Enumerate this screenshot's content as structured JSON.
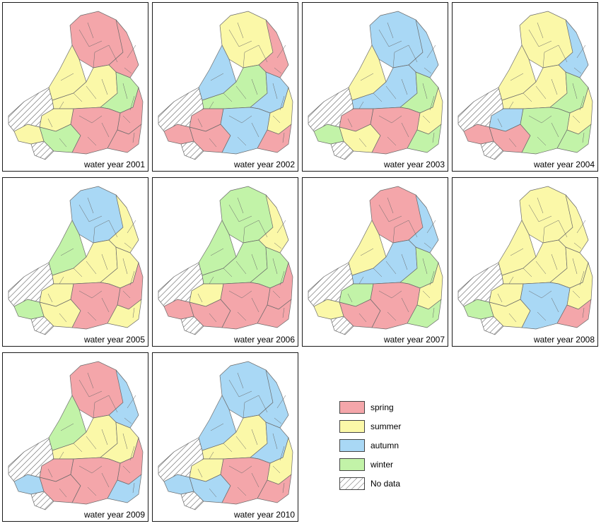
{
  "colors": {
    "spring": "#f4a6aa",
    "summer": "#fbf8a8",
    "autumn": "#a9d8f5",
    "winter": "#c2f3a8",
    "nodata": "#ffffff",
    "outline": "#6a6a6a"
  },
  "legend": [
    {
      "key": "spring",
      "label": "spring"
    },
    {
      "key": "summer",
      "label": "summer"
    },
    {
      "key": "autumn",
      "label": "autumn"
    },
    {
      "key": "winter",
      "label": "winter"
    },
    {
      "key": "nodata",
      "label": "No data"
    }
  ],
  "maps": [
    {
      "caption": "water year 2001",
      "cells": {
        "N": "spring",
        "NW": "summer",
        "NE": "spring",
        "C": "summer",
        "W": "summer",
        "CE": "winter",
        "E": "spring",
        "SW": "winter",
        "S": "spring",
        "SE": "spring",
        "COAST": "summer"
      }
    },
    {
      "caption": "water year 2002",
      "cells": {
        "N": "summer",
        "NW": "autumn",
        "NE": "spring",
        "C": "winter",
        "W": "spring",
        "CE": "autumn",
        "E": "summer",
        "SW": "spring",
        "S": "autumn",
        "SE": "spring",
        "COAST": "spring"
      }
    },
    {
      "caption": "water year 2003",
      "cells": {
        "N": "autumn",
        "NW": "summer",
        "NE": "autumn",
        "C": "autumn",
        "W": "spring",
        "CE": "winter",
        "E": "summer",
        "SW": "summer",
        "S": "spring",
        "SE": "winter",
        "COAST": "winter"
      }
    },
    {
      "caption": "water year 2004",
      "cells": {
        "N": "summer",
        "NW": "summer",
        "NE": "autumn",
        "C": "summer",
        "W": "autumn",
        "CE": "winter",
        "E": "summer",
        "SW": "spring",
        "S": "winter",
        "SE": "winter",
        "COAST": "spring"
      }
    },
    {
      "caption": "water year 2005",
      "cells": {
        "N": "autumn",
        "NW": "winter",
        "NE": "summer",
        "C": "summer",
        "W": "summer",
        "CE": "summer",
        "E": "spring",
        "SW": "summer",
        "S": "spring",
        "SE": "summer",
        "COAST": "winter"
      }
    },
    {
      "caption": "water year 2006",
      "cells": {
        "N": "winter",
        "NW": "winter",
        "NE": "summer",
        "C": "winter",
        "W": "summer",
        "CE": "winter",
        "E": "spring",
        "SW": "spring",
        "S": "spring",
        "SE": "spring",
        "COAST": "spring"
      }
    },
    {
      "caption": "water year 2007",
      "cells": {
        "N": "spring",
        "NW": "summer",
        "NE": "autumn",
        "C": "autumn",
        "W": "winter",
        "CE": "winter",
        "E": "summer",
        "SW": "spring",
        "S": "spring",
        "SE": "winter",
        "COAST": "summer"
      }
    },
    {
      "caption": "water year 2008",
      "cells": {
        "N": "summer",
        "NW": "summer",
        "NE": "summer",
        "C": "summer",
        "W": "summer",
        "CE": "summer",
        "E": "summer",
        "SW": "summer",
        "S": "autumn",
        "SE": "spring",
        "COAST": "winter"
      }
    },
    {
      "caption": "water year 2009",
      "cells": {
        "N": "spring",
        "NW": "winter",
        "NE": "autumn",
        "C": "summer",
        "W": "spring",
        "CE": "summer",
        "E": "spring",
        "SW": "spring",
        "S": "spring",
        "SE": "autumn",
        "COAST": "autumn"
      }
    },
    {
      "caption": "water year 2010",
      "cells": {
        "N": "autumn",
        "NW": "autumn",
        "NE": "autumn",
        "C": "summer",
        "W": "summer",
        "CE": "autumn",
        "E": "summer",
        "SW": "autumn",
        "S": "spring",
        "SE": "spring",
        "COAST": "autumn"
      }
    }
  ]
}
